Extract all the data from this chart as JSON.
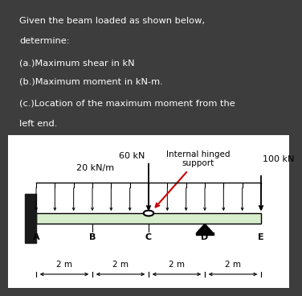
{
  "text_box_bg": "#3d3d3d",
  "text_box_text_color": "#ffffff",
  "text_lines": [
    "Given the beam loaded as shown below,",
    "determine:",
    "(a.)Maximum shear in kN",
    "(b.)Maximum moment in kN-m.",
    "(c.)Location of the maximum moment from the",
    "left end."
  ],
  "diagram_bg": "#ffffff",
  "beam_color": "#d8edcc",
  "beam_outline": "#000000",
  "points": {
    "A": 0.1,
    "B": 0.3,
    "C": 0.5,
    "D": 0.7,
    "E": 0.9
  },
  "span_labels": [
    "2 m",
    "2 m",
    "2 m",
    "2 m"
  ],
  "load_60kN_label": "60 kN",
  "load_100kN_label": "100 kN",
  "udl_label": "20 kN/m",
  "hinge_label": "Internal hinged\nsupport",
  "red_arrow_color": "#cc0000"
}
